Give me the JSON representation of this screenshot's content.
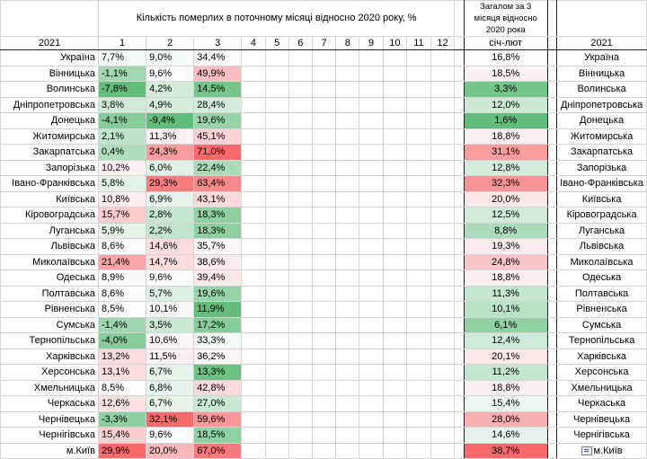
{
  "header": {
    "title": "Кількість померлих в поточному місяці відносно 2020 року, %",
    "total_title": "Загалом за 3 місяця відносно 2020 рока",
    "year_left": "2021",
    "year_right": "2021",
    "months": [
      "1",
      "2",
      "3",
      "4",
      "5",
      "6",
      "7",
      "8",
      "9",
      "10",
      "11",
      "12"
    ],
    "total_col": "січ-лют"
  },
  "colors": {
    "scale_low": "#63be7b",
    "scale_mid": "#fcfcff",
    "scale_high": "#f8696b"
  },
  "rows": [
    {
      "name": "Україна",
      "m1": "7,7%",
      "m2": "9,0%",
      "m3": "34,4%",
      "total": "16,8%"
    },
    {
      "name": "Вінницька",
      "m1": "-1,1%",
      "m2": "9,6%",
      "m3": "49,9%",
      "total": "18,5%"
    },
    {
      "name": "Волинська",
      "m1": "-7,8%",
      "m2": "4,2%",
      "m3": "14,5%",
      "total": "3,3%"
    },
    {
      "name": "Дніпропетровська",
      "m1": "3,8%",
      "m2": "4,9%",
      "m3": "28,4%",
      "total": "12,0%"
    },
    {
      "name": "Донецька",
      "m1": "-4,1%",
      "m2": "-9,4%",
      "m3": "19,6%",
      "total": "1,6%"
    },
    {
      "name": "Житомирська",
      "m1": "2,1%",
      "m2": "11,3%",
      "m3": "45,1%",
      "total": "18,8%"
    },
    {
      "name": "Закарпатська",
      "m1": "0,4%",
      "m2": "24,3%",
      "m3": "71,0%",
      "total": "31,1%"
    },
    {
      "name": "Запорізька",
      "m1": "10,2%",
      "m2": "6,0%",
      "m3": "22,4%",
      "total": "12,8%"
    },
    {
      "name": "Івано-Франківська",
      "m1": "5,8%",
      "m2": "29,3%",
      "m3": "63,4%",
      "total": "32,3%"
    },
    {
      "name": "Київська",
      "m1": "10,8%",
      "m2": "6,9%",
      "m3": "43,1%",
      "total": "20,0%"
    },
    {
      "name": "Кіровоградська",
      "m1": "15,7%",
      "m2": "2,8%",
      "m3": "18,3%",
      "total": "12,5%"
    },
    {
      "name": "Луганська",
      "m1": "5,9%",
      "m2": "2,2%",
      "m3": "18,3%",
      "total": "8,8%"
    },
    {
      "name": "Львівська",
      "m1": "8,6%",
      "m2": "14,6%",
      "m3": "35,7%",
      "total": "19,3%"
    },
    {
      "name": "Миколаївська",
      "m1": "21,4%",
      "m2": "14,7%",
      "m3": "38,6%",
      "total": "24,8%"
    },
    {
      "name": "Одеська",
      "m1": "8,9%",
      "m2": "9,6%",
      "m3": "39,4%",
      "total": "18,8%"
    },
    {
      "name": "Полтавська",
      "m1": "8,6%",
      "m2": "5,7%",
      "m3": "19,6%",
      "total": "11,3%"
    },
    {
      "name": "Рівненська",
      "m1": "8,5%",
      "m2": "10,1%",
      "m3": "11,9%",
      "total": "10,1%"
    },
    {
      "name": "Сумська",
      "m1": "-1,4%",
      "m2": "3,5%",
      "m3": "17,2%",
      "total": "6,1%"
    },
    {
      "name": "Тернопільська",
      "m1": "-4,0%",
      "m2": "10,6%",
      "m3": "33,3%",
      "total": "12,4%"
    },
    {
      "name": "Харківська",
      "m1": "13,2%",
      "m2": "11,5%",
      "m3": "36,2%",
      "total": "20,1%"
    },
    {
      "name": "Херсонська",
      "m1": "13,1%",
      "m2": "6,7%",
      "m3": "13,3%",
      "total": "11,2%"
    },
    {
      "name": "Хмельницька",
      "m1": "8,5%",
      "m2": "6,8%",
      "m3": "42,8%",
      "total": "18,8%"
    },
    {
      "name": "Черкаська",
      "m1": "12,6%",
      "m2": "6,7%",
      "m3": "27,0%",
      "total": "15,4%"
    },
    {
      "name": "Чернівецька",
      "m1": "-3,3%",
      "m2": "32,1%",
      "m3": "59,6%",
      "total": "28,0%"
    },
    {
      "name": "Чернігівська",
      "m1": "15,4%",
      "m2": "9,6%",
      "m3": "18,5%",
      "total": "14,6%"
    },
    {
      "name": "м.Київ",
      "m1": "29,9%",
      "m2": "20,0%",
      "m3": "67,0%",
      "total": "38,7%"
    }
  ]
}
